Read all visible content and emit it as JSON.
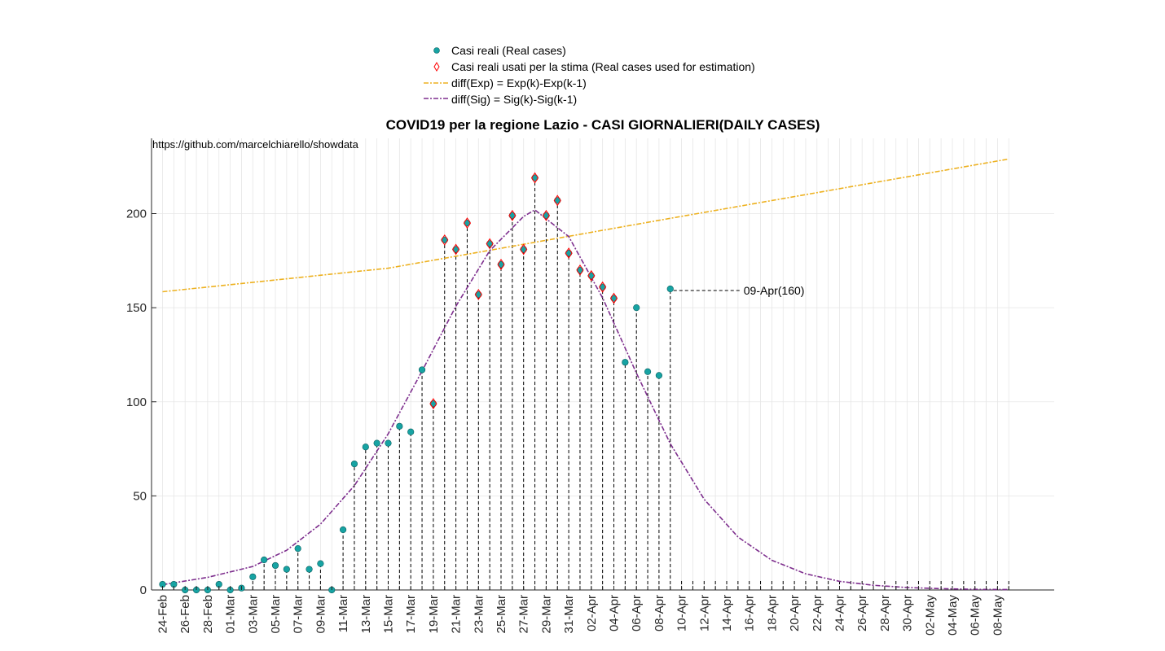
{
  "chart_data": {
    "type": "scatter",
    "title": "COVID19 per la regione Lazio - CASI GIORNALIERI(DAILY CASES)",
    "source_text": "https://github.com/marcelchiarello/showdata",
    "xlabel": "",
    "ylabel": "",
    "ylim": [
      0,
      240
    ],
    "yticks": [
      0,
      50,
      100,
      150,
      200
    ],
    "grid": true,
    "legend_position": "top-center",
    "date_axis": {
      "first_date": "24-Feb",
      "last_date": "09-May",
      "tick_labels": [
        "24-Feb",
        "26-Feb",
        "28-Feb",
        "01-Mar",
        "03-Mar",
        "05-Mar",
        "07-Mar",
        "09-Mar",
        "11-Mar",
        "13-Mar",
        "15-Mar",
        "17-Mar",
        "19-Mar",
        "21-Mar",
        "23-Mar",
        "25-Mar",
        "27-Mar",
        "29-Mar",
        "31-Mar",
        "02-Apr",
        "04-Apr",
        "06-Apr",
        "08-Apr",
        "10-Apr",
        "12-Apr",
        "14-Apr",
        "16-Apr",
        "18-Apr",
        "20-Apr",
        "22-Apr",
        "24-Apr",
        "26-Apr",
        "28-Apr",
        "30-Apr",
        "02-May",
        "04-May",
        "06-May",
        "08-May"
      ]
    },
    "series": [
      {
        "name": "Casi reali (Real cases)",
        "color": "#17a3a3",
        "x": [
          "24-Feb",
          "25-Feb",
          "26-Feb",
          "27-Feb",
          "28-Feb",
          "29-Feb",
          "01-Mar",
          "02-Mar",
          "03-Mar",
          "04-Mar",
          "05-Mar",
          "06-Mar",
          "07-Mar",
          "08-Mar",
          "09-Mar",
          "10-Mar",
          "11-Mar",
          "12-Mar",
          "13-Mar",
          "14-Mar",
          "15-Mar",
          "16-Mar",
          "17-Mar",
          "18-Mar",
          "19-Mar",
          "20-Mar",
          "21-Mar",
          "22-Mar",
          "23-Mar",
          "24-Mar",
          "25-Mar",
          "26-Mar",
          "27-Mar",
          "28-Mar",
          "29-Mar",
          "30-Mar",
          "31-Mar",
          "01-Apr",
          "02-Apr",
          "03-Apr",
          "04-Apr",
          "05-Apr",
          "06-Apr",
          "07-Apr",
          "08-Apr",
          "09-Apr"
        ],
        "values": [
          3,
          3,
          0,
          0,
          0,
          3,
          0,
          1,
          7,
          16,
          13,
          11,
          22,
          11,
          14,
          0,
          32,
          67,
          76,
          78,
          78,
          87,
          84,
          117,
          99,
          186,
          181,
          195,
          157,
          184,
          173,
          199,
          181,
          219,
          199,
          207,
          179,
          170,
          167,
          161,
          155,
          121,
          150,
          116,
          114,
          160
        ]
      },
      {
        "name": "Casi reali usati per la stima (Real cases used for estimation)",
        "color": "#ff0000",
        "x": [
          "19-Mar",
          "20-Mar",
          "21-Mar",
          "22-Mar",
          "23-Mar",
          "24-Mar",
          "25-Mar",
          "26-Mar",
          "27-Mar",
          "28-Mar",
          "29-Mar",
          "30-Mar",
          "31-Mar",
          "01-Apr",
          "02-Apr",
          "03-Apr",
          "04-Apr"
        ],
        "values": [
          99,
          186,
          181,
          195,
          157,
          184,
          173,
          199,
          181,
          219,
          199,
          207,
          179,
          170,
          167,
          161,
          155
        ]
      },
      {
        "name": "diff(Exp) = Exp(k)-Exp(k-1)",
        "color": "#edb120",
        "x": [
          "24-Feb",
          "15-Mar",
          "09-Apr",
          "09-May"
        ],
        "values": [
          158.5,
          171,
          197.5,
          229
        ]
      },
      {
        "name": "diff(Sig) = Sig(k)-Sig(k-1)",
        "color": "#7e2f8e",
        "x": [
          "24-Feb",
          "28-Feb",
          "03-Mar",
          "06-Mar",
          "09-Mar",
          "12-Mar",
          "15-Mar",
          "18-Mar",
          "21-Mar",
          "24-Mar",
          "27-Mar",
          "28-Mar",
          "31-Mar",
          "03-Apr",
          "06-Apr",
          "09-Apr",
          "12-Apr",
          "15-Apr",
          "18-Apr",
          "21-Apr",
          "24-Apr",
          "27-Apr",
          "30-Apr",
          "03-May",
          "06-May",
          "09-May"
        ],
        "values": [
          2.8,
          6.7,
          12.5,
          21.1,
          35.0,
          55.4,
          83.0,
          116.3,
          150.8,
          180.3,
          198.5,
          202.0,
          187.8,
          155.3,
          115.2,
          77.7,
          48.2,
          28.1,
          15.8,
          8.6,
          4.6,
          2.5,
          1.3,
          0.7,
          0.35,
          0.2
        ]
      }
    ],
    "annotations": [
      {
        "x": "09-Apr",
        "y": 160,
        "text": "09-Apr(160)"
      }
    ]
  }
}
